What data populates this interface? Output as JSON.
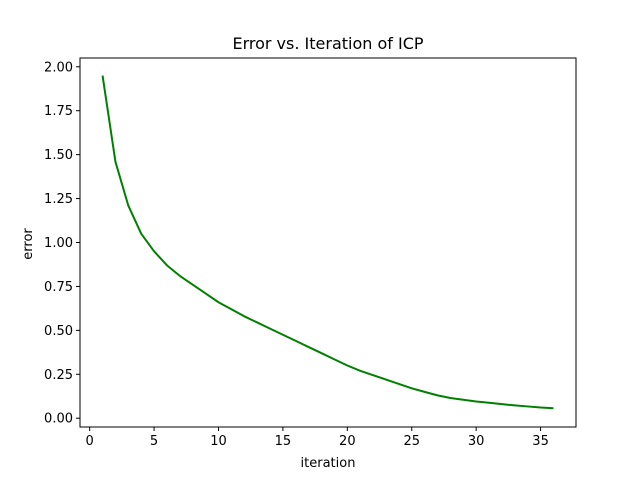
{
  "chart_data": {
    "type": "line",
    "title": "Error vs. Iteration of ICP",
    "xlabel": "iteration",
    "ylabel": "error",
    "xlim": [
      -0.75,
      37.75
    ],
    "ylim": [
      -0.05,
      2.05
    ],
    "xticks": [
      0,
      5,
      10,
      15,
      20,
      25,
      30,
      35
    ],
    "xtick_labels": [
      "0",
      "5",
      "10",
      "15",
      "20",
      "25",
      "30",
      "35"
    ],
    "yticks": [
      0.0,
      0.25,
      0.5,
      0.75,
      1.0,
      1.25,
      1.5,
      1.75,
      2.0
    ],
    "ytick_labels": [
      "0.00",
      "0.25",
      "0.50",
      "0.75",
      "1.00",
      "1.25",
      "1.50",
      "1.75",
      "2.00"
    ],
    "grid": false,
    "series": [
      {
        "color": "#008000",
        "x": [
          1,
          2,
          3,
          4,
          5,
          6,
          7,
          8,
          9,
          10,
          11,
          12,
          13,
          14,
          15,
          16,
          17,
          18,
          19,
          20,
          21,
          22,
          23,
          24,
          25,
          26,
          27,
          28,
          29,
          30,
          31,
          32,
          33,
          34,
          35,
          36
        ],
        "y": [
          1.95,
          1.46,
          1.21,
          1.05,
          0.95,
          0.87,
          0.81,
          0.76,
          0.71,
          0.66,
          0.62,
          0.58,
          0.545,
          0.51,
          0.475,
          0.44,
          0.405,
          0.37,
          0.335,
          0.3,
          0.27,
          0.245,
          0.22,
          0.195,
          0.17,
          0.15,
          0.13,
          0.115,
          0.105,
          0.095,
          0.088,
          0.08,
          0.073,
          0.067,
          0.061,
          0.057
        ]
      }
    ]
  }
}
